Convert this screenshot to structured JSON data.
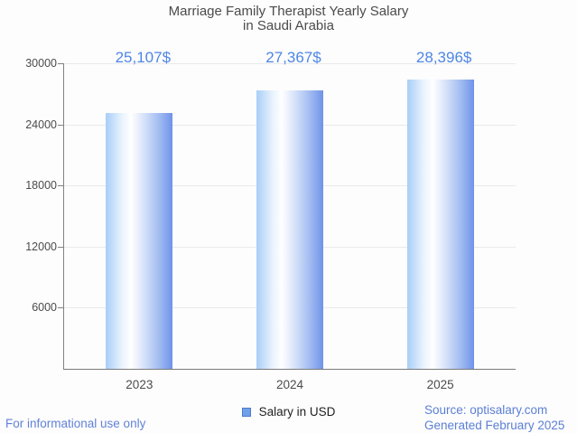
{
  "title": {
    "line1": "Marriage Family Therapist Yearly Salary",
    "line2": "in Saudi Arabia"
  },
  "chart_data": {
    "type": "bar",
    "title": "Marriage Family Therapist Yearly Salary in Saudi Arabia",
    "categories": [
      "2023",
      "2024",
      "2025"
    ],
    "values": [
      25107,
      27367,
      28396
    ],
    "value_labels": [
      "25,107$",
      "27,367$",
      "28,396$"
    ],
    "series_name": "Salary in USD",
    "xlabel": "",
    "ylabel": "",
    "ylim": [
      0,
      30000
    ],
    "yticks": [
      30000,
      24000,
      18000,
      12000,
      6000
    ],
    "grid": true,
    "legend_position": "bottom"
  },
  "legend": {
    "label": "Salary in USD",
    "swatch_color": "#6fa0e8"
  },
  "footer": {
    "left": "For informational use only",
    "source": "Source: optisalary.com",
    "generated": "Generated February 2025"
  },
  "colors": {
    "value_label": "#4e86e6",
    "footer_text": "#6282d8",
    "bar_gradient_left": "#a8cef8",
    "bar_gradient_mid": "#ffffff",
    "bar_gradient_right": "#7093e9",
    "axis": "#828282",
    "gridline": "#e9e9e9",
    "text": "#4b4b4b"
  }
}
